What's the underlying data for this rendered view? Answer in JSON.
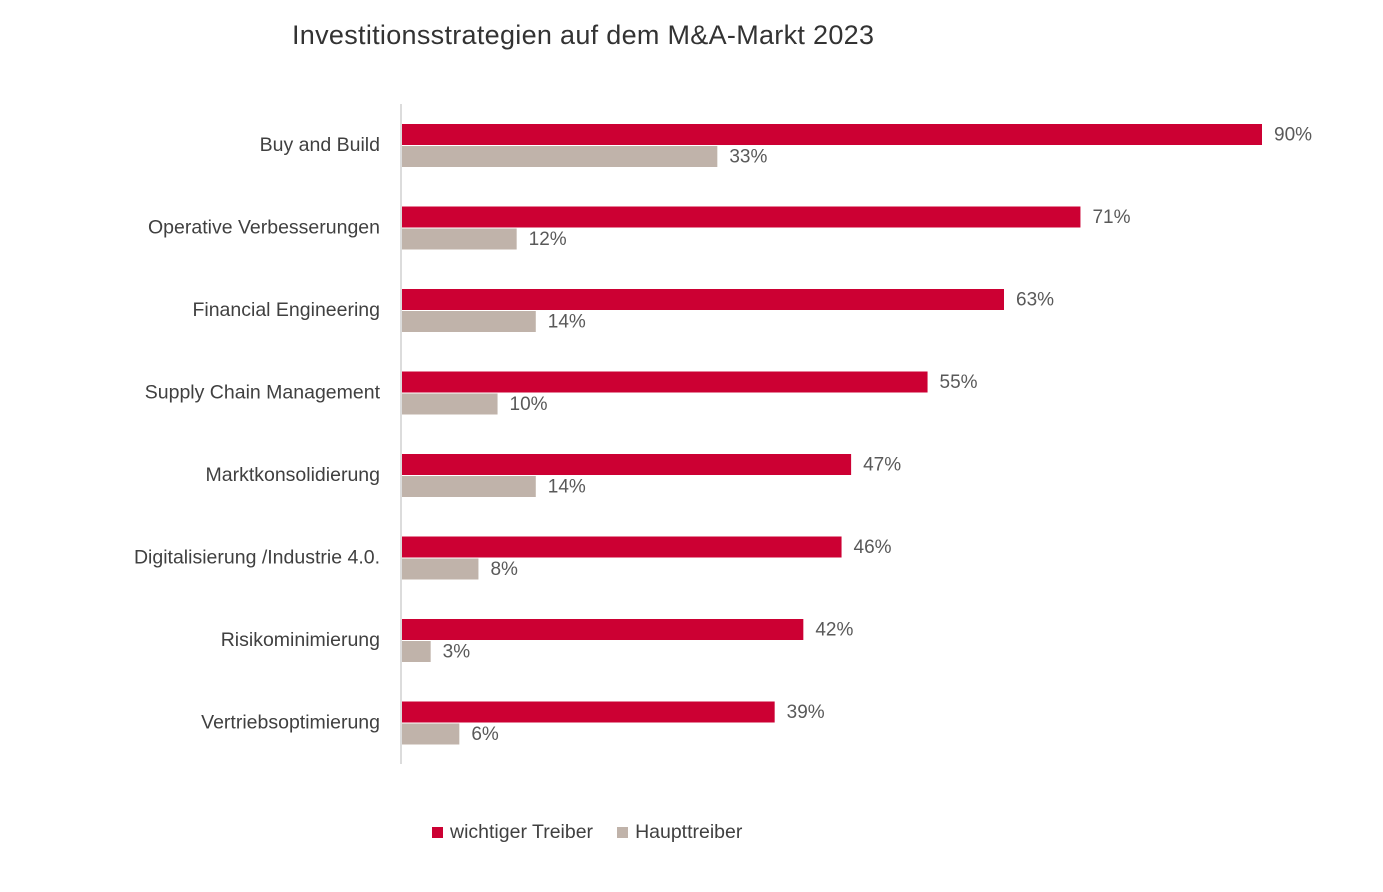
{
  "chart_data": {
    "type": "bar",
    "orientation": "horizontal",
    "title": "Investitionsstrategien auf dem M&A-Markt 2023",
    "categories": [
      "Buy and Build",
      "Operative Verbesserungen",
      "Financial Engineering",
      "Supply Chain Management",
      "Marktkonsolidierung",
      "Digitalisierung /Industrie 4.0.",
      "Risikominimierung",
      "Vertriebsoptimierung"
    ],
    "series": [
      {
        "name": "wichtiger Treiber",
        "color": "#cc0033",
        "values": [
          90,
          71,
          63,
          55,
          47,
          46,
          42,
          39
        ],
        "labels": [
          "90%",
          "71%",
          "63%",
          "55%",
          "47%",
          "46%",
          "42%",
          "39%"
        ]
      },
      {
        "name": "Haupttreiber",
        "color": "#c0b3aa",
        "values": [
          33,
          12,
          14,
          10,
          14,
          8,
          3,
          6
        ],
        "labels": [
          "33%",
          "12%",
          "14%",
          "10%",
          "14%",
          "8%",
          "3%",
          "6%"
        ]
      }
    ],
    "xlim": [
      0,
      100
    ],
    "grid": false,
    "legend": "bottom"
  }
}
